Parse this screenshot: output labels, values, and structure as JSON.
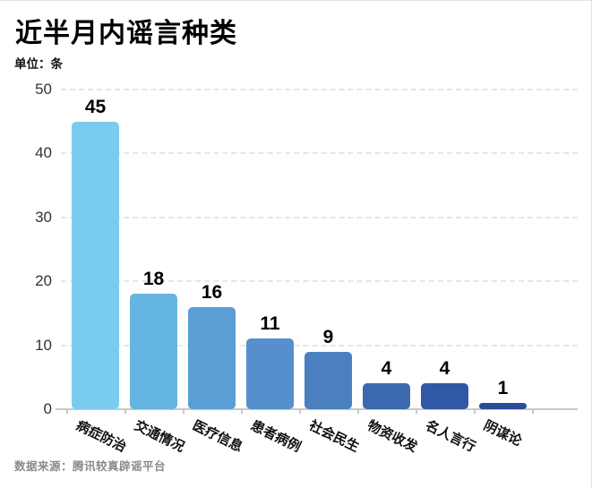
{
  "header": {
    "title": "近半月内谣言种类",
    "unit_label": "单位：条"
  },
  "footer": {
    "source": "数据来源：腾讯较真辟谣平台"
  },
  "chart_data": {
    "type": "bar",
    "title": "近半月内谣言种类",
    "subtitle": "单位：条",
    "unit": "条",
    "categories": [
      "病症防治",
      "交通情况",
      "医疗信息",
      "患者病例",
      "社会民生",
      "物资收发",
      "名人言行",
      "阴谋论"
    ],
    "values": [
      45,
      18,
      16,
      11,
      9,
      4,
      4,
      1
    ],
    "bar_colors": [
      "#7accee",
      "#65b5e2",
      "#5b9ed6",
      "#5590cc",
      "#4a80c0",
      "#3c69b0",
      "#3058a5",
      "#2b4b97"
    ],
    "value_label_color": "#000000",
    "xlabel": "",
    "ylabel": "",
    "ylim": [
      0,
      50
    ],
    "yticks": [
      0,
      10,
      20,
      30,
      40,
      50
    ],
    "grid": "horizontal-dashed",
    "legend": "none",
    "category_label_rotation_deg": 26,
    "source": "数据来源：腾讯较真辟谣平台"
  }
}
